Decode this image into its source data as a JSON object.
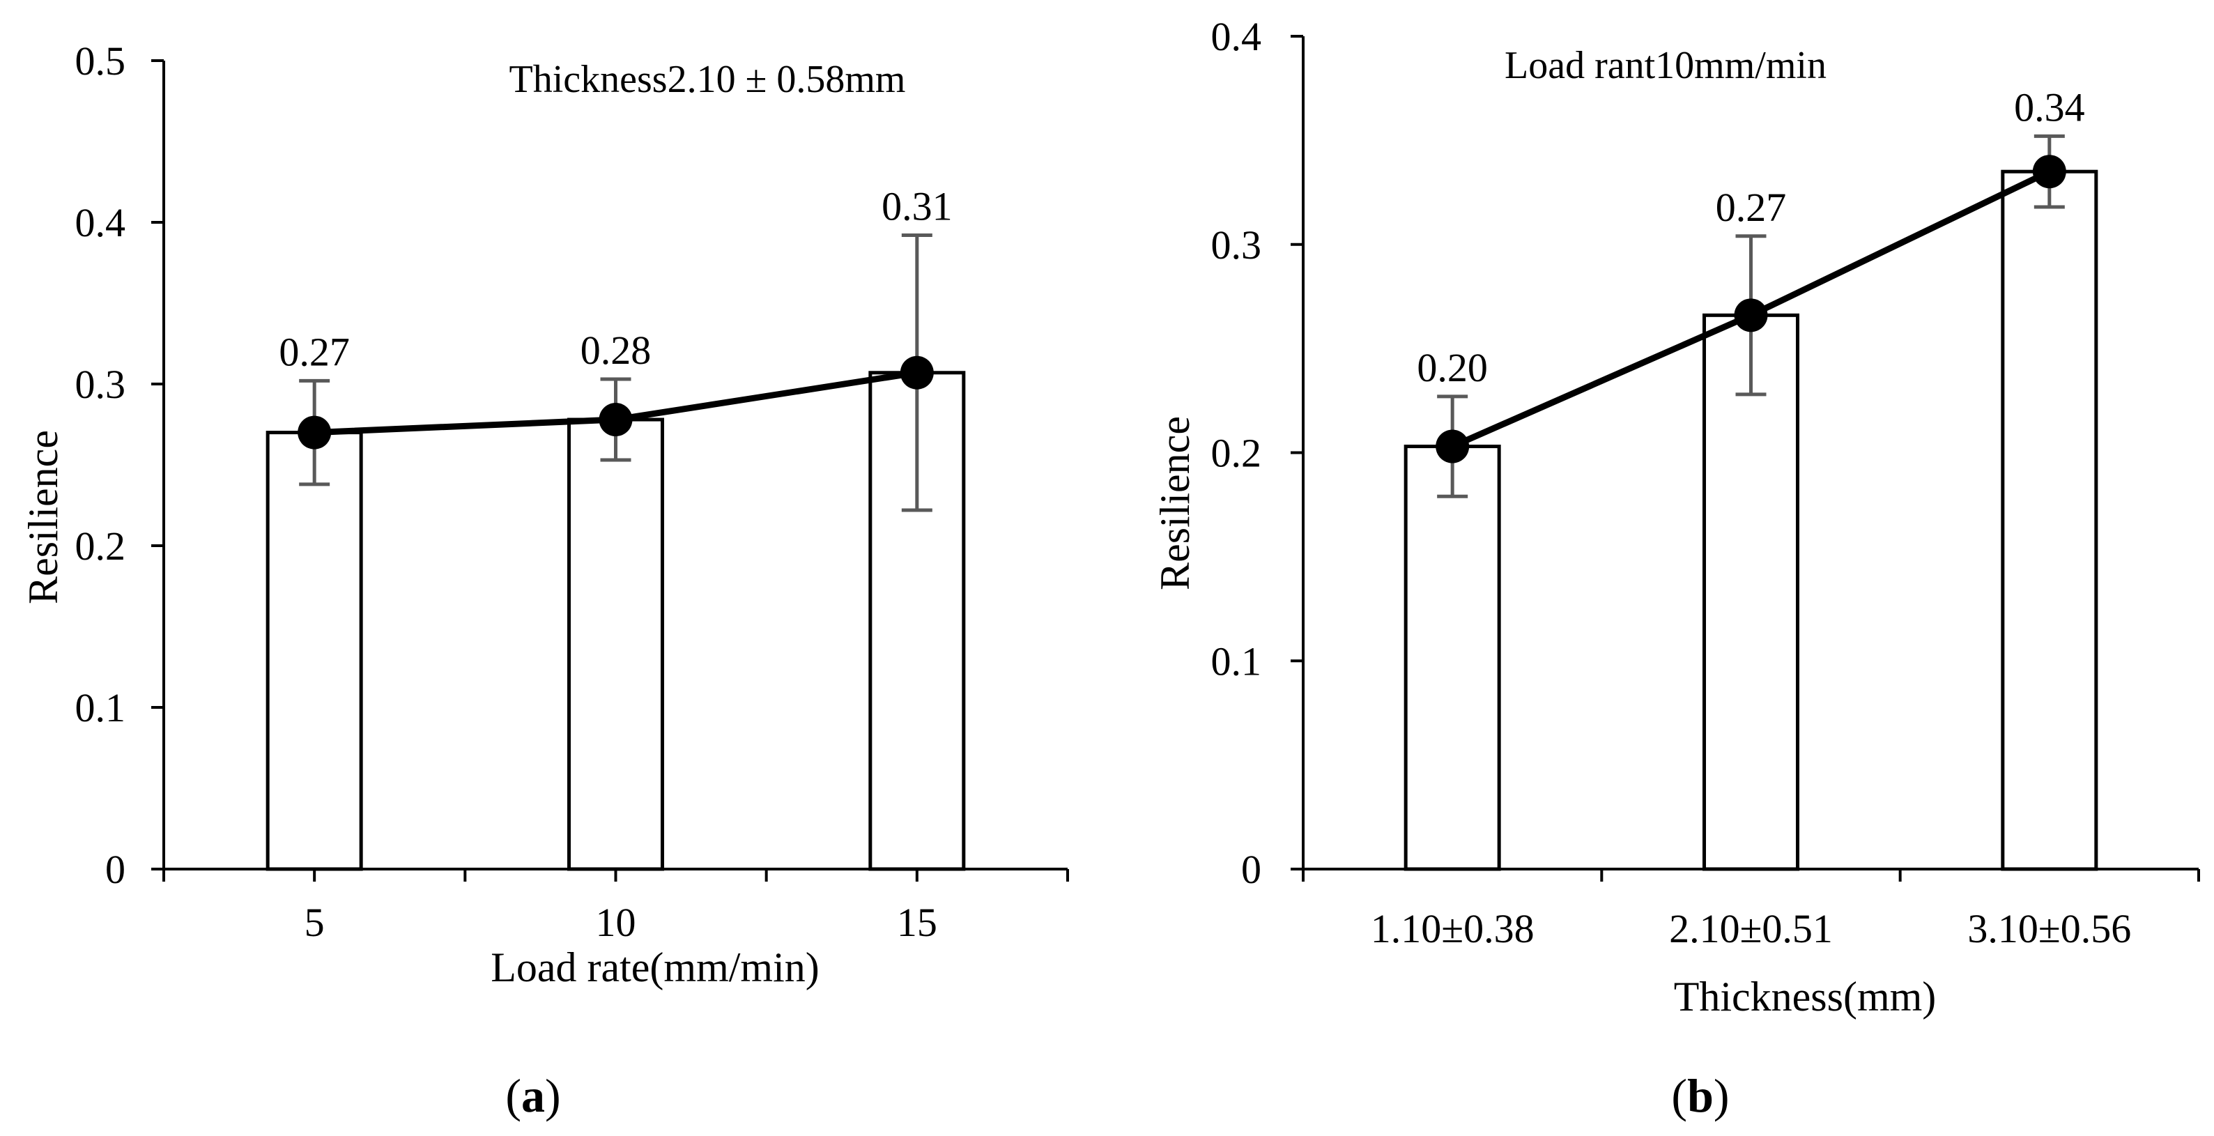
{
  "chart_data": [
    {
      "panel": "(a)",
      "panel_letter": "a",
      "type": "bar",
      "annotation": "Thickness2.10 ± 0.58mm",
      "xlabel": "Load rate(mm/min)",
      "ylabel": "Resilience",
      "ylim": [
        0,
        0.5
      ],
      "yticks": [
        "0",
        "0.1",
        "0.2",
        "0.3",
        "0.4",
        "0.5"
      ],
      "categories": [
        "5",
        "10",
        "15"
      ],
      "values": [
        0.27,
        0.278,
        0.307
      ],
      "error_low": [
        0.238,
        0.253,
        0.222
      ],
      "error_high": [
        0.302,
        0.303,
        0.392
      ],
      "data_labels": [
        "0.27",
        "0.28",
        "0.31"
      ],
      "line_overlay": true
    },
    {
      "panel": "(b)",
      "panel_letter": "b",
      "type": "bar",
      "annotation": "Load rant10mm/min",
      "xlabel": "Thickness(mm)",
      "ylabel": "Resilience",
      "ylim": [
        0,
        0.4
      ],
      "yticks": [
        "0",
        "0.1",
        "0.2",
        "0.3",
        "0.4"
      ],
      "categories": [
        "1.10±0.38",
        "2.10±0.51",
        "3.10±0.56"
      ],
      "values": [
        0.203,
        0.266,
        0.335
      ],
      "error_low": [
        0.179,
        0.228,
        0.318
      ],
      "error_high": [
        0.227,
        0.304,
        0.352
      ],
      "data_labels": [
        "0.20",
        "0.27",
        "0.34"
      ],
      "line_overlay": true
    }
  ]
}
